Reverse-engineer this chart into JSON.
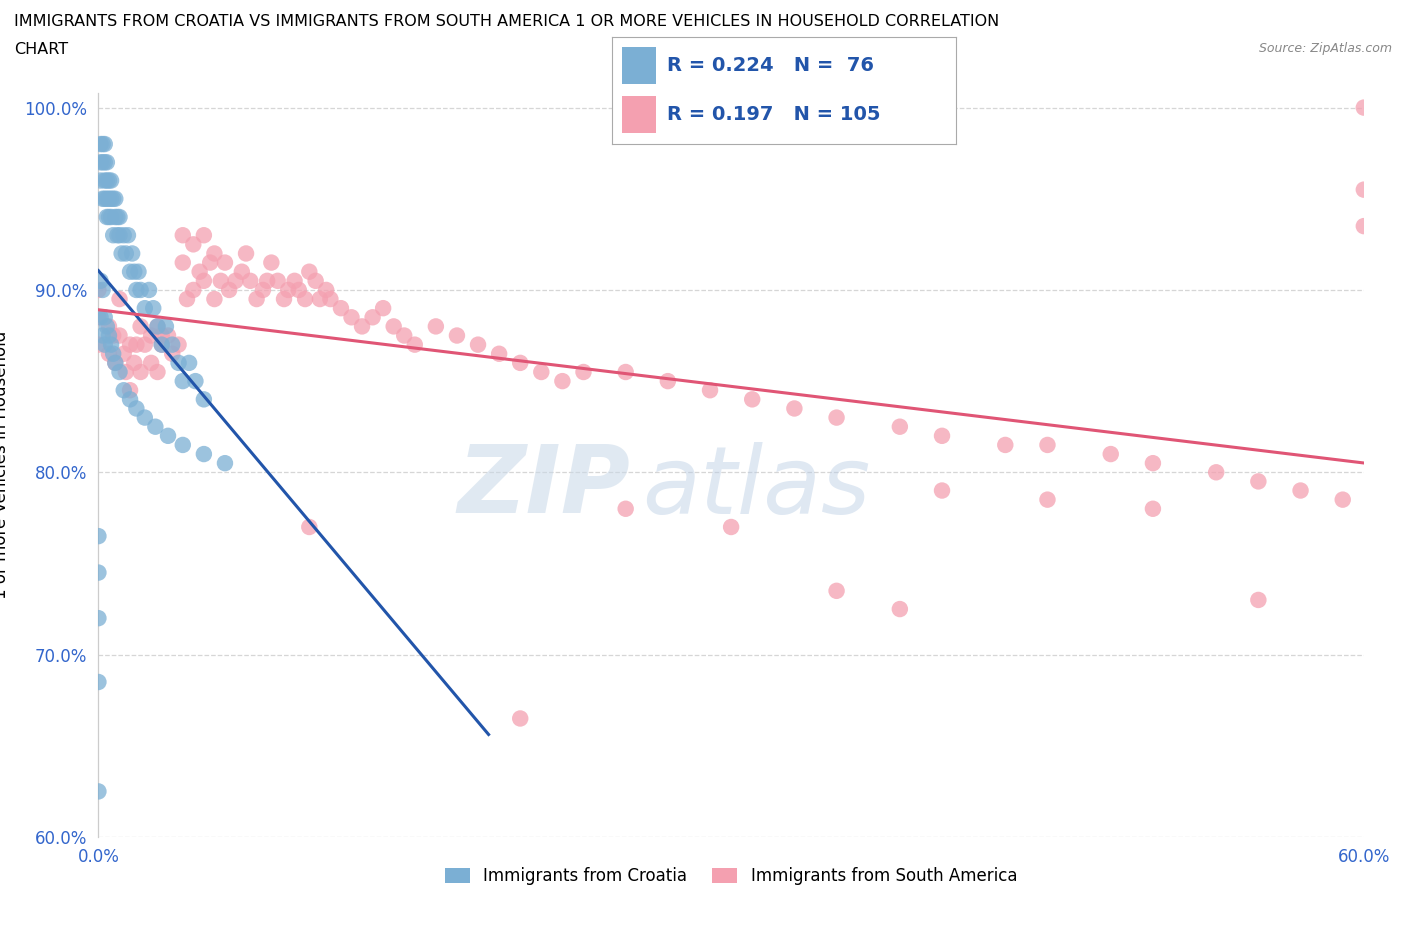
{
  "title_line1": "IMMIGRANTS FROM CROATIA VS IMMIGRANTS FROM SOUTH AMERICA 1 OR MORE VEHICLES IN HOUSEHOLD CORRELATION",
  "title_line2": "CHART",
  "source": "Source: ZipAtlas.com",
  "ylabel": "1 or more Vehicles in Household",
  "x_min": 0.0,
  "x_max": 0.6,
  "y_min": 0.6,
  "y_max": 1.008,
  "color_croatia": "#7BAFD4",
  "color_south_america": "#F4A0B0",
  "trendline_croatia": "#2255AA",
  "trendline_south_america": "#E05575",
  "R_croatia": 0.224,
  "N_croatia": 76,
  "R_south_america": 0.197,
  "N_south_america": 105,
  "watermark_ZIP": "ZIP",
  "watermark_atlas": "atlas",
  "legend_labels": [
    "Immigrants from Croatia",
    "Immigrants from South America"
  ],
  "croatia_x": [
    0.001,
    0.001,
    0.001,
    0.002,
    0.002,
    0.002,
    0.003,
    0.003,
    0.003,
    0.003,
    0.004,
    0.004,
    0.004,
    0.004,
    0.005,
    0.005,
    0.005,
    0.006,
    0.006,
    0.006,
    0.007,
    0.007,
    0.008,
    0.008,
    0.009,
    0.009,
    0.01,
    0.01,
    0.011,
    0.012,
    0.013,
    0.014,
    0.015,
    0.016,
    0.017,
    0.018,
    0.019,
    0.02,
    0.022,
    0.024,
    0.026,
    0.028,
    0.03,
    0.032,
    0.035,
    0.038,
    0.04,
    0.043,
    0.046,
    0.05,
    0.0,
    0.0,
    0.0,
    0.0,
    0.0,
    0.001,
    0.001,
    0.002,
    0.002,
    0.003,
    0.003,
    0.004,
    0.005,
    0.006,
    0.007,
    0.008,
    0.01,
    0.012,
    0.015,
    0.018,
    0.022,
    0.027,
    0.033,
    0.04,
    0.05,
    0.06
  ],
  "croatia_y": [
    0.97,
    0.98,
    0.96,
    0.95,
    0.97,
    0.98,
    0.96,
    0.95,
    0.97,
    0.98,
    0.94,
    0.96,
    0.97,
    0.95,
    0.95,
    0.96,
    0.94,
    0.94,
    0.95,
    0.96,
    0.93,
    0.95,
    0.94,
    0.95,
    0.93,
    0.94,
    0.93,
    0.94,
    0.92,
    0.93,
    0.92,
    0.93,
    0.91,
    0.92,
    0.91,
    0.9,
    0.91,
    0.9,
    0.89,
    0.9,
    0.89,
    0.88,
    0.87,
    0.88,
    0.87,
    0.86,
    0.85,
    0.86,
    0.85,
    0.84,
    0.625,
    0.685,
    0.72,
    0.745,
    0.765,
    0.885,
    0.905,
    0.875,
    0.9,
    0.87,
    0.885,
    0.88,
    0.875,
    0.87,
    0.865,
    0.86,
    0.855,
    0.845,
    0.84,
    0.835,
    0.83,
    0.825,
    0.82,
    0.815,
    0.81,
    0.805
  ],
  "south_america_x": [
    0.0,
    0.0,
    0.0,
    0.005,
    0.005,
    0.007,
    0.008,
    0.01,
    0.01,
    0.012,
    0.013,
    0.015,
    0.015,
    0.017,
    0.018,
    0.02,
    0.02,
    0.022,
    0.025,
    0.025,
    0.028,
    0.028,
    0.03,
    0.03,
    0.033,
    0.035,
    0.038,
    0.04,
    0.04,
    0.042,
    0.045,
    0.045,
    0.048,
    0.05,
    0.05,
    0.053,
    0.055,
    0.055,
    0.058,
    0.06,
    0.062,
    0.065,
    0.068,
    0.07,
    0.072,
    0.075,
    0.078,
    0.08,
    0.082,
    0.085,
    0.088,
    0.09,
    0.093,
    0.095,
    0.098,
    0.1,
    0.103,
    0.105,
    0.108,
    0.11,
    0.115,
    0.12,
    0.125,
    0.13,
    0.135,
    0.14,
    0.145,
    0.15,
    0.16,
    0.17,
    0.18,
    0.19,
    0.2,
    0.21,
    0.22,
    0.23,
    0.25,
    0.27,
    0.29,
    0.31,
    0.33,
    0.35,
    0.38,
    0.4,
    0.43,
    0.45,
    0.48,
    0.5,
    0.53,
    0.55,
    0.57,
    0.59,
    0.6,
    0.6,
    0.25,
    0.3,
    0.35,
    0.55,
    0.38,
    0.6,
    0.4,
    0.45,
    0.5,
    0.2,
    0.1
  ],
  "south_america_y": [
    0.87,
    0.885,
    0.9,
    0.88,
    0.865,
    0.875,
    0.86,
    0.875,
    0.895,
    0.865,
    0.855,
    0.87,
    0.845,
    0.86,
    0.87,
    0.88,
    0.855,
    0.87,
    0.875,
    0.86,
    0.88,
    0.855,
    0.875,
    0.87,
    0.875,
    0.865,
    0.87,
    0.93,
    0.915,
    0.895,
    0.925,
    0.9,
    0.91,
    0.93,
    0.905,
    0.915,
    0.92,
    0.895,
    0.905,
    0.915,
    0.9,
    0.905,
    0.91,
    0.92,
    0.905,
    0.895,
    0.9,
    0.905,
    0.915,
    0.905,
    0.895,
    0.9,
    0.905,
    0.9,
    0.895,
    0.91,
    0.905,
    0.895,
    0.9,
    0.895,
    0.89,
    0.885,
    0.88,
    0.885,
    0.89,
    0.88,
    0.875,
    0.87,
    0.88,
    0.875,
    0.87,
    0.865,
    0.86,
    0.855,
    0.85,
    0.855,
    0.855,
    0.85,
    0.845,
    0.84,
    0.835,
    0.83,
    0.825,
    0.82,
    0.815,
    0.815,
    0.81,
    0.805,
    0.8,
    0.795,
    0.79,
    0.785,
    0.955,
    1.0,
    0.78,
    0.77,
    0.735,
    0.73,
    0.725,
    0.935,
    0.79,
    0.785,
    0.78,
    0.665,
    0.77
  ]
}
